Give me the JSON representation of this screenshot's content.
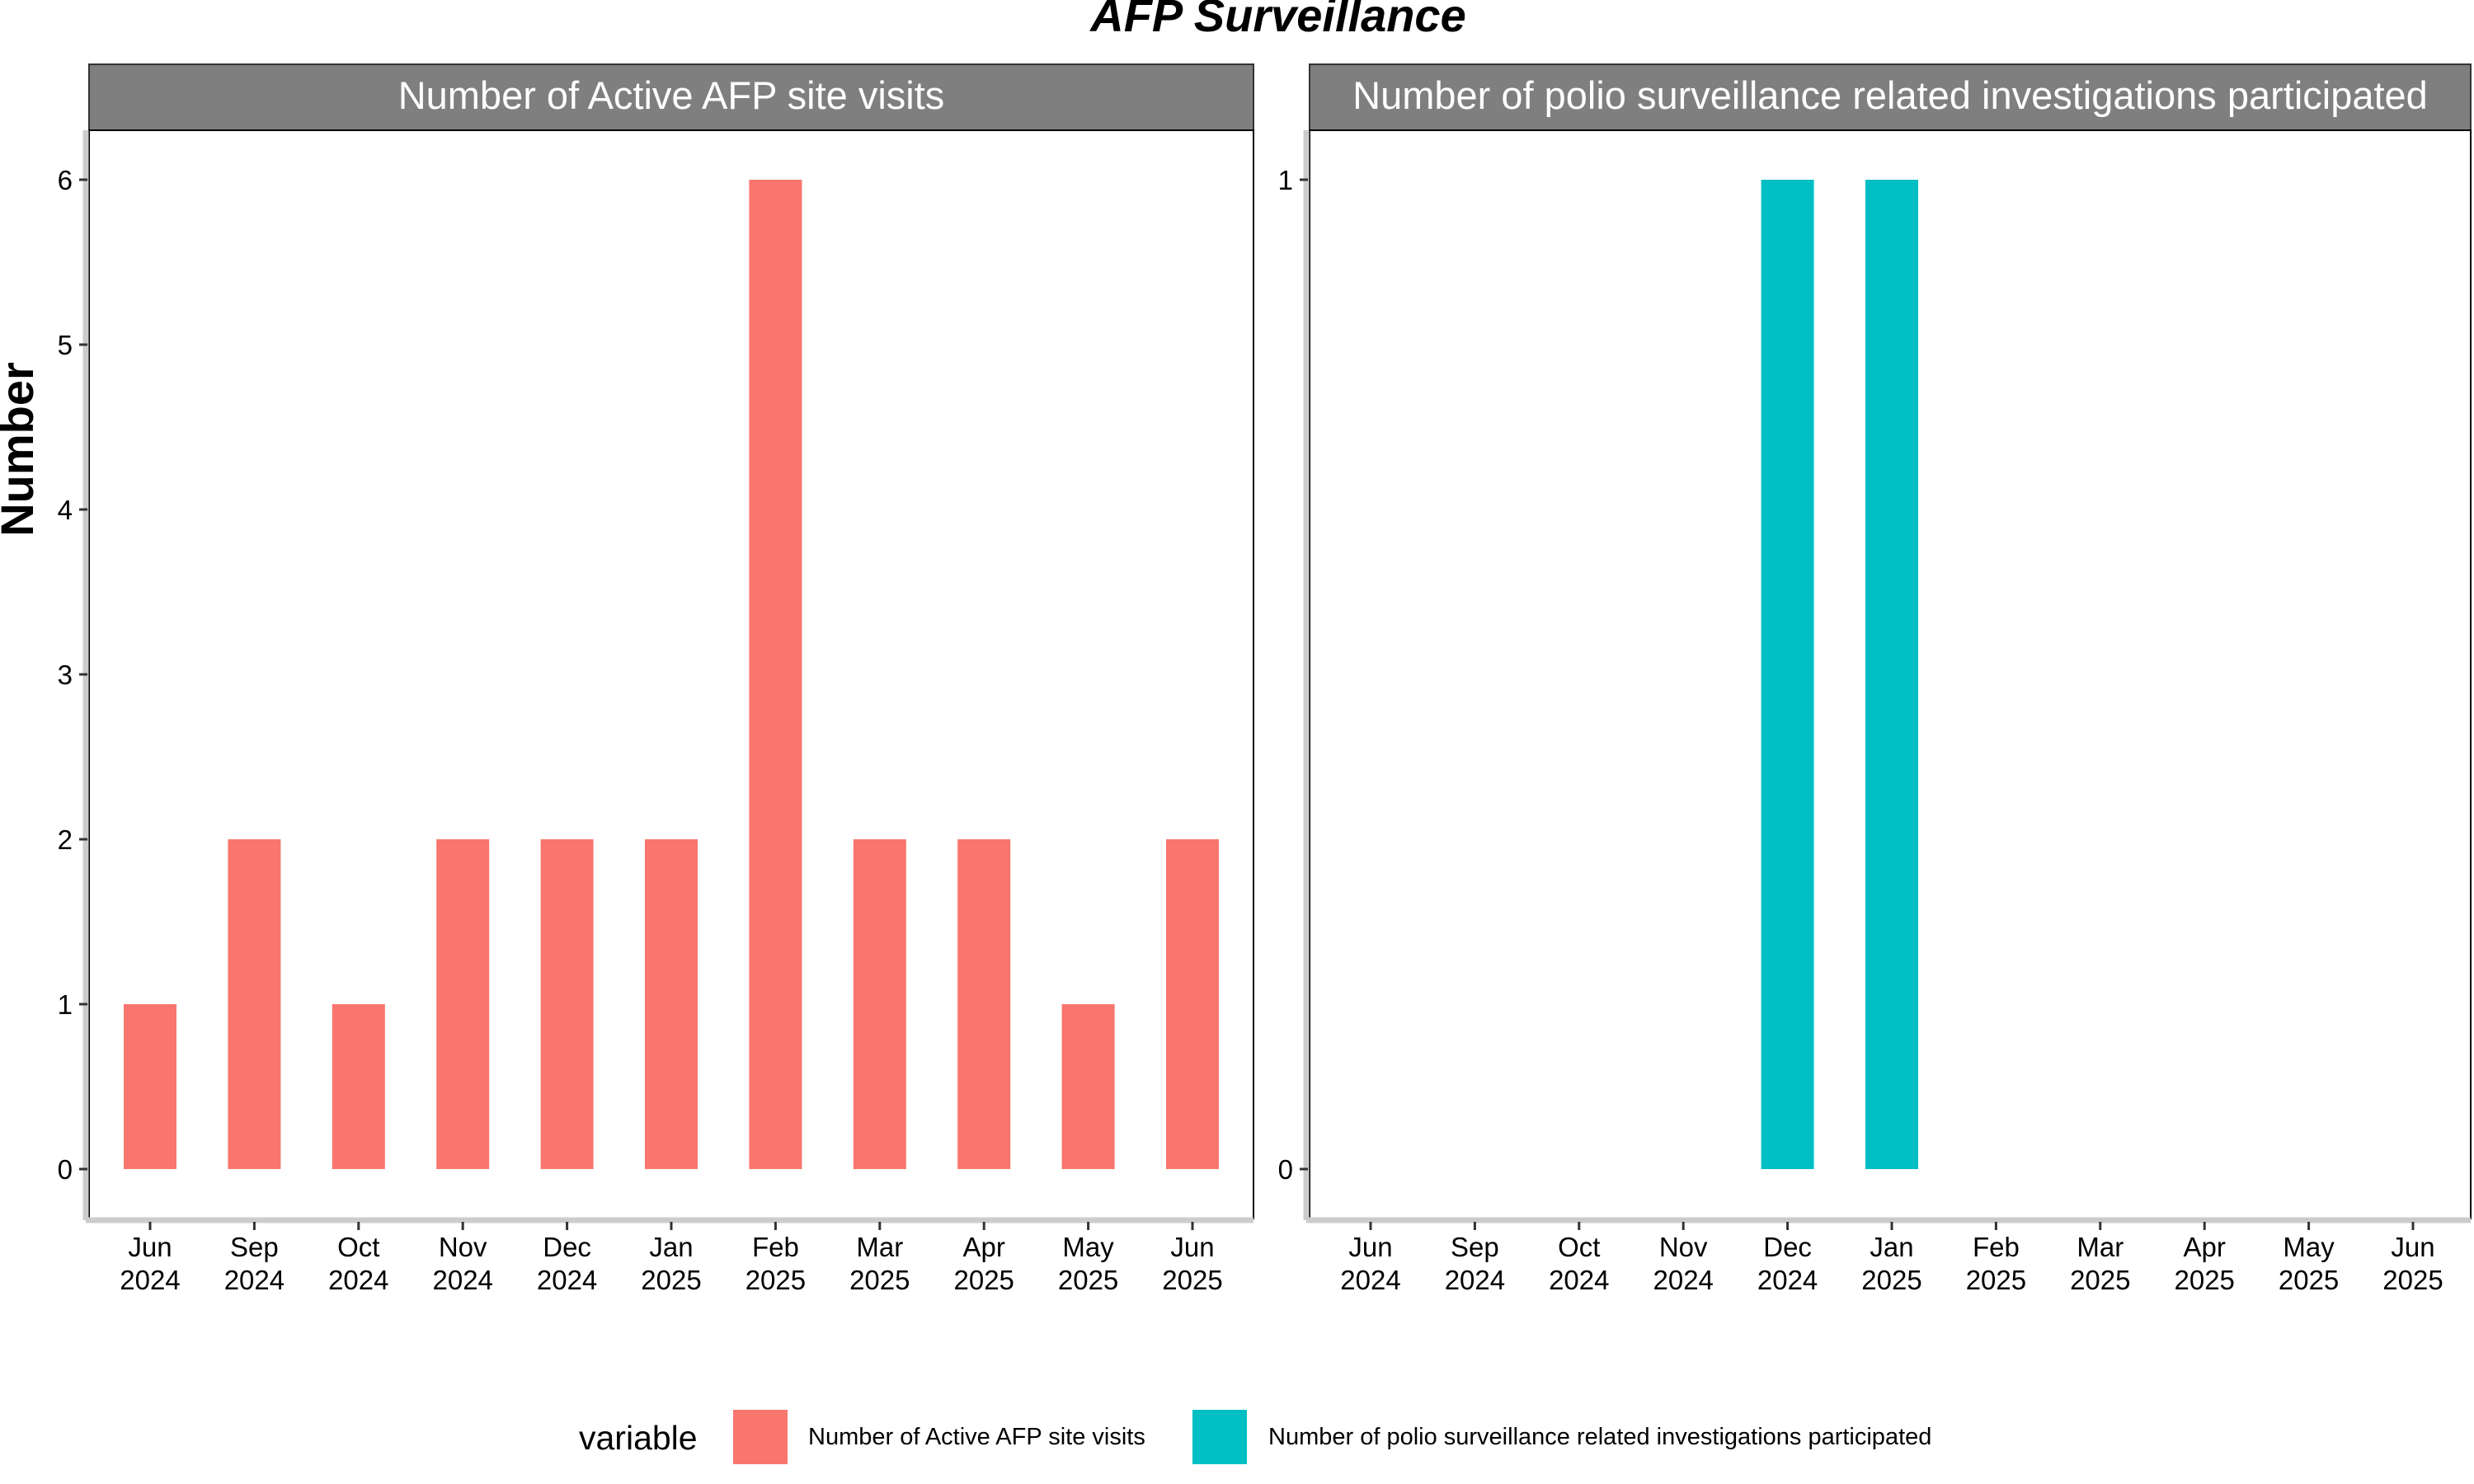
{
  "chart_data": {
    "type": "bar",
    "title": "AFP Surveillance",
    "ylabel": "Number",
    "xlabel": "",
    "legend": {
      "title": "variable",
      "position": "bottom",
      "entries": [
        {
          "label": "Number of Active AFP site visits",
          "color": "#F8766D"
        },
        {
          "label": "Number of polio surveillance related investigations participated",
          "color": "#00BFC4"
        }
      ]
    },
    "categories": [
      "Jun\n2024",
      "Sep\n2024",
      "Oct\n2024",
      "Nov\n2024",
      "Dec\n2024",
      "Jan\n2025",
      "Feb\n2025",
      "Mar\n2025",
      "Apr\n2025",
      "May\n2025",
      "Jun\n2025"
    ],
    "panels": [
      {
        "strip": "Number of Active AFP site visits",
        "color": "#F8766D",
        "ylim": [
          0,
          6
        ],
        "yticks": [
          0,
          1,
          2,
          3,
          4,
          5,
          6
        ],
        "values": [
          1,
          2,
          1,
          2,
          2,
          2,
          6,
          2,
          2,
          1,
          2
        ]
      },
      {
        "strip": "Number of polio surveillance related investigations participated",
        "color": "#00BFC4",
        "ylim": [
          0,
          1
        ],
        "yticks": [
          0,
          1
        ],
        "values": [
          null,
          null,
          null,
          null,
          1,
          1,
          null,
          null,
          null,
          null,
          null
        ]
      }
    ]
  }
}
